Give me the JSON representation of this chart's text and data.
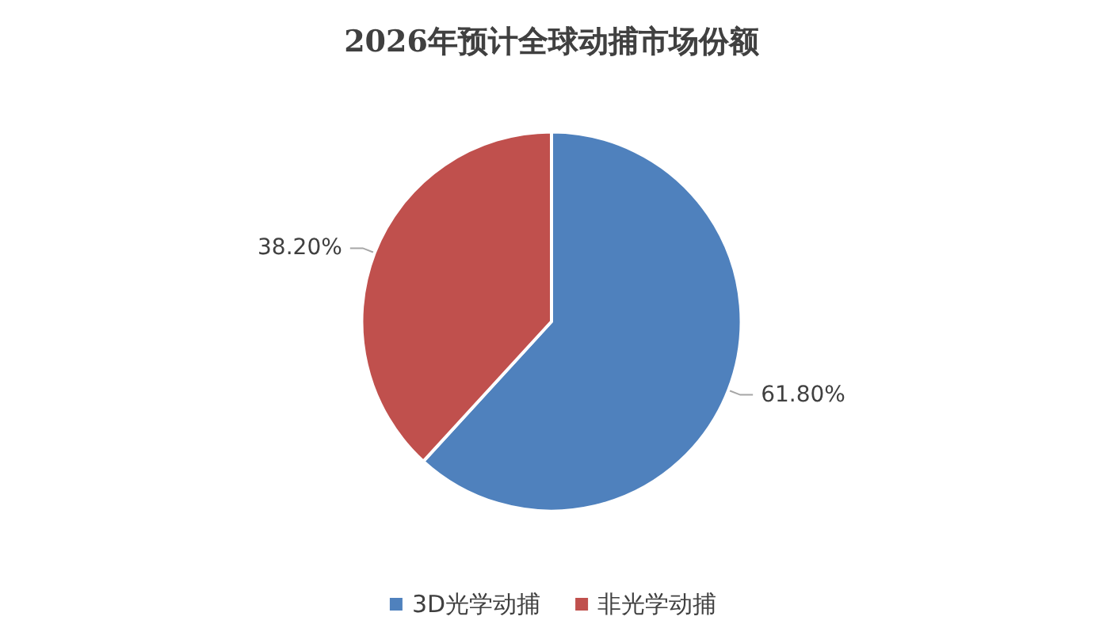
{
  "chart_data": {
    "type": "pie",
    "title": "2026年预计全球动捕市场份额",
    "categories": [
      "3D光学动捕",
      "非光学动捕"
    ],
    "values": [
      61.8,
      38.2
    ],
    "colors": [
      "#4f81bd",
      "#c0504d"
    ],
    "value_labels": [
      "61.80%",
      "38.20%"
    ],
    "legend": "bottom"
  }
}
